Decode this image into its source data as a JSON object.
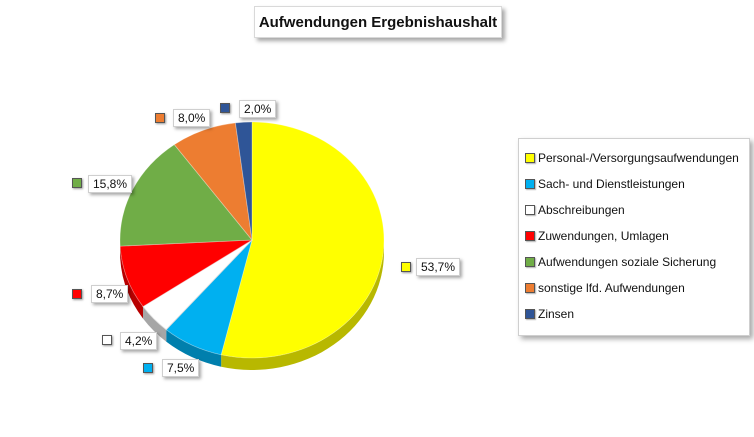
{
  "chart_data": {
    "type": "pie",
    "title": "Aufwendungen Ergebnishaushalt",
    "slices": [
      {
        "name": "Personal-/Versorgungsaufwendungen",
        "value": 53.7,
        "label": "53,7%",
        "color": "#ffff00"
      },
      {
        "name": "Sach- und Dienstleistungen",
        "value": 7.5,
        "label": "7,5%",
        "color": "#00b0f0"
      },
      {
        "name": "Abschreibungen",
        "value": 4.2,
        "label": "4,2%",
        "color": "#ffffff"
      },
      {
        "name": "Zuwendungen, Umlagen",
        "value": 8.7,
        "label": "8,7%",
        "color": "#ff0000"
      },
      {
        "name": "Aufwendungen soziale Sicherung",
        "value": 15.8,
        "label": "15,8%",
        "color": "#70ad47"
      },
      {
        "name": "sonstige lfd. Aufwendungen",
        "value": 8.0,
        "label": "8,0%",
        "color": "#ed7d31"
      },
      {
        "name": "Zinsen",
        "value": 2.0,
        "label": "2,0%",
        "color": "#2f5597"
      }
    ],
    "legend_position": "right"
  }
}
